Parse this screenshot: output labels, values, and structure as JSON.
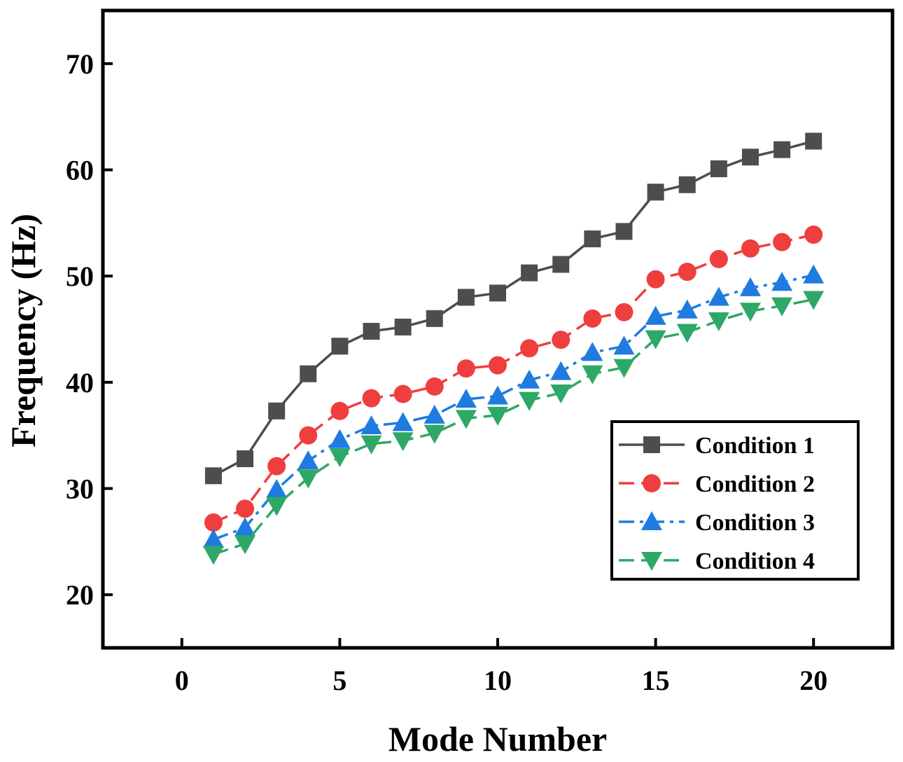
{
  "chart_data": {
    "type": "line",
    "title": "",
    "xlabel": "Mode Number",
    "ylabel": "Frequency (Hz)",
    "xlim": [
      -2.5,
      22.5
    ],
    "ylim": [
      15,
      75
    ],
    "xticks": [
      0,
      5,
      10,
      15,
      20
    ],
    "yticks": [
      20,
      30,
      40,
      50,
      60,
      70
    ],
    "x": [
      1,
      2,
      3,
      4,
      5,
      6,
      7,
      8,
      9,
      10,
      11,
      12,
      13,
      14,
      15,
      16,
      17,
      18,
      19,
      20
    ],
    "legend_position": "bottom-right",
    "series": [
      {
        "name": "Condition 1",
        "color": "#4d4d4d",
        "marker": "square",
        "linestyle": "solid",
        "values": [
          31.2,
          32.8,
          37.3,
          40.8,
          43.4,
          44.8,
          45.2,
          46.0,
          48.0,
          48.4,
          50.3,
          51.1,
          53.5,
          54.2,
          57.9,
          58.6,
          60.1,
          61.2,
          61.9,
          62.7
        ]
      },
      {
        "name": "Condition 2",
        "color": "#ef3e3e",
        "marker": "circle",
        "linestyle": "dash",
        "values": [
          26.8,
          28.1,
          32.1,
          35.0,
          37.3,
          38.5,
          38.9,
          39.6,
          41.3,
          41.6,
          43.2,
          44.0,
          46.0,
          46.6,
          49.7,
          50.4,
          51.6,
          52.6,
          53.2,
          53.9
        ]
      },
      {
        "name": "Condition 3",
        "color": "#1e7be0",
        "marker": "triangle-up",
        "linestyle": "dashdot",
        "values": [
          25.2,
          26.3,
          29.9,
          32.6,
          34.6,
          35.9,
          36.2,
          36.9,
          38.4,
          38.7,
          40.2,
          41.0,
          42.8,
          43.4,
          46.2,
          46.8,
          48.0,
          48.9,
          49.4,
          50.1
        ]
      },
      {
        "name": "Condition 4",
        "color": "#2ea866",
        "marker": "triangle-down",
        "linestyle": "dash",
        "values": [
          23.8,
          24.8,
          28.4,
          31.0,
          33.0,
          34.2,
          34.5,
          35.2,
          36.6,
          36.9,
          38.3,
          39.0,
          40.8,
          41.4,
          44.1,
          44.7,
          45.8,
          46.7,
          47.2,
          47.8
        ]
      }
    ]
  }
}
